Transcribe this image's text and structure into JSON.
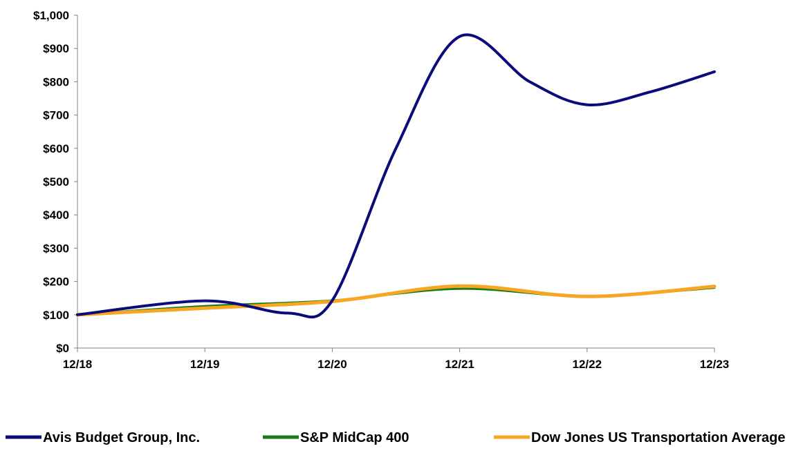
{
  "chart_data": {
    "type": "line",
    "title": "",
    "xlabel": "",
    "ylabel": "",
    "categories": [
      "12/18",
      "12/19",
      "12/20",
      "12/21",
      "12/22",
      "12/23"
    ],
    "y_tick_labels": [
      "$0",
      "$100",
      "$200",
      "$300",
      "$400",
      "$500",
      "$600",
      "$700",
      "$800",
      "$900",
      "$1,000"
    ],
    "y_ticks": [
      0,
      100,
      200,
      300,
      400,
      500,
      600,
      700,
      800,
      900,
      1000
    ],
    "ylim": [
      0,
      1000
    ],
    "grid": false,
    "legend_position": "bottom",
    "series": [
      {
        "name": "Avis Budget Group, Inc.",
        "color": "#0b0b7a",
        "values": [
          100,
          142,
          143,
          936,
          731,
          830
        ],
        "curve_points": [
          [
            0,
            100
          ],
          [
            1,
            142
          ],
          [
            1.65,
            105
          ],
          [
            2,
            143
          ],
          [
            2.5,
            600
          ],
          [
            3,
            936
          ],
          [
            3.55,
            800
          ],
          [
            4,
            731
          ],
          [
            4.5,
            770
          ],
          [
            5,
            830
          ]
        ]
      },
      {
        "name": "S&P MidCap 400",
        "color": "#1a7a1a",
        "values": [
          100,
          126,
          143,
          178,
          155,
          181
        ]
      },
      {
        "name": "Dow Jones US Transportation Average",
        "color": "#f5a623",
        "values": [
          100,
          120,
          140,
          186,
          155,
          185
        ]
      }
    ]
  }
}
